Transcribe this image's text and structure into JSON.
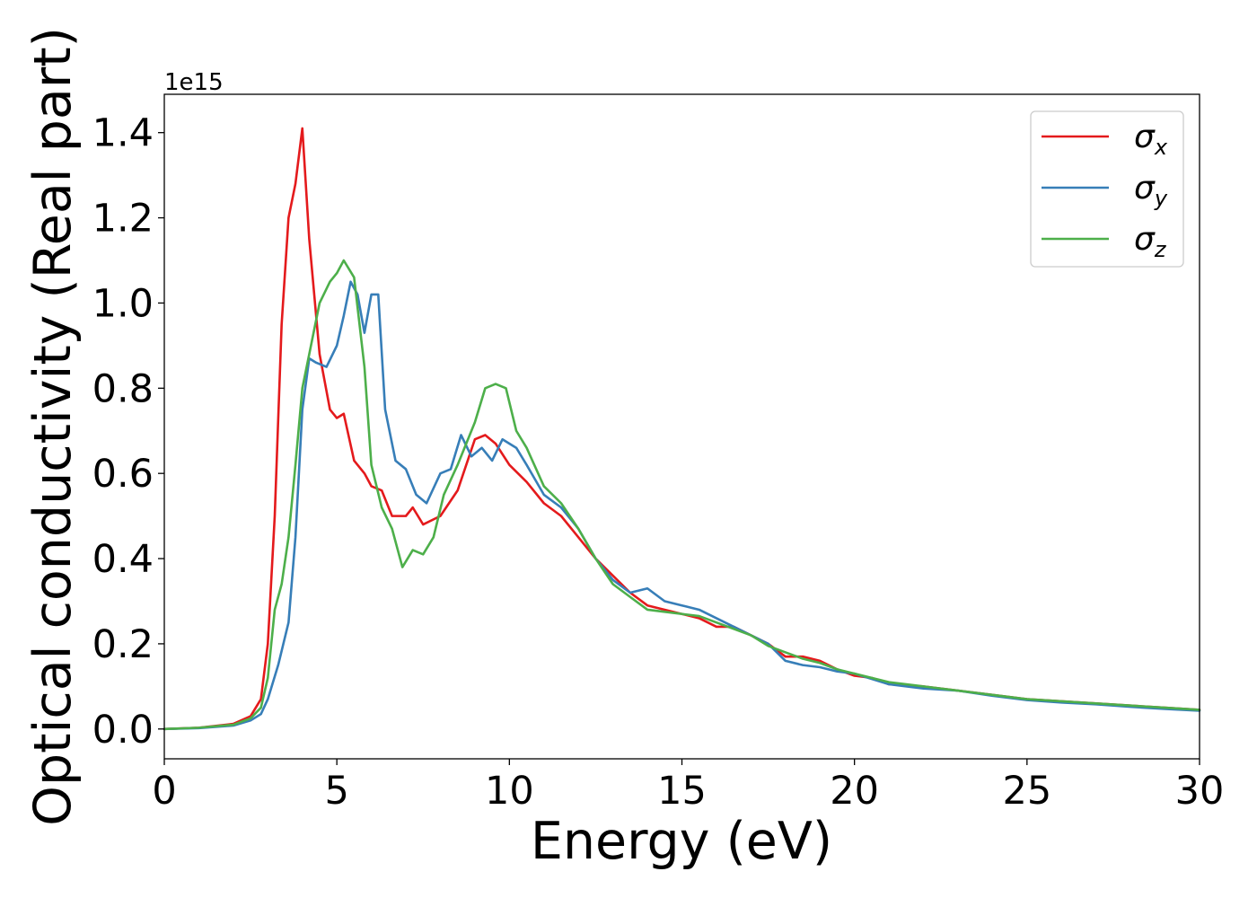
{
  "chart_data": {
    "type": "line",
    "xlabel": "Energy (eV)",
    "ylabel": "Optical conductivity (Real part)",
    "y_offset_label": "1e15",
    "xlim": [
      0,
      30
    ],
    "ylim": [
      -0.07,
      1.49
    ],
    "x_ticks": [
      0,
      5,
      10,
      15,
      20,
      25,
      30
    ],
    "x_tick_labels": [
      "0",
      "5",
      "10",
      "15",
      "20",
      "25",
      "30"
    ],
    "y_ticks": [
      0.0,
      0.2,
      0.4,
      0.6,
      0.8,
      1.0,
      1.2,
      1.4
    ],
    "y_tick_labels": [
      "0.0",
      "0.2",
      "0.4",
      "0.6",
      "0.8",
      "1.0",
      "1.2",
      "1.4"
    ],
    "grid": false,
    "legend_position": "top-right",
    "series": [
      {
        "name": "σx",
        "symbol": "σ",
        "subscript": "x",
        "color": "#e41a1c",
        "x": [
          0,
          1,
          2,
          2.5,
          2.8,
          3.0,
          3.2,
          3.4,
          3.6,
          3.8,
          4.0,
          4.2,
          4.5,
          4.8,
          5.0,
          5.2,
          5.5,
          5.8,
          6.0,
          6.3,
          6.6,
          7.0,
          7.2,
          7.5,
          8.0,
          8.5,
          9.0,
          9.3,
          9.6,
          10.0,
          10.5,
          11.0,
          11.5,
          12.0,
          12.5,
          13.0,
          13.5,
          14.0,
          14.5,
          15.0,
          15.5,
          16.0,
          16.5,
          17.0,
          17.5,
          18.0,
          18.5,
          19.0,
          19.5,
          20.0,
          20.5,
          21.0,
          22.0,
          23.0,
          24.0,
          25.0,
          26.0,
          27.0,
          28.0,
          29.0,
          30.0
        ],
        "values": [
          0.0,
          0.003,
          0.012,
          0.03,
          0.07,
          0.2,
          0.5,
          0.95,
          1.2,
          1.28,
          1.41,
          1.15,
          0.88,
          0.75,
          0.73,
          0.74,
          0.63,
          0.6,
          0.57,
          0.56,
          0.5,
          0.5,
          0.52,
          0.48,
          0.5,
          0.56,
          0.68,
          0.69,
          0.67,
          0.62,
          0.58,
          0.53,
          0.5,
          0.45,
          0.4,
          0.36,
          0.32,
          0.29,
          0.28,
          0.27,
          0.26,
          0.24,
          0.24,
          0.22,
          0.2,
          0.17,
          0.17,
          0.16,
          0.14,
          0.125,
          0.12,
          0.105,
          0.1,
          0.09,
          0.08,
          0.07,
          0.065,
          0.06,
          0.055,
          0.05,
          0.045
        ]
      },
      {
        "name": "σy",
        "symbol": "σ",
        "subscript": "y",
        "color": "#377eb8",
        "x": [
          0,
          1,
          2,
          2.5,
          2.8,
          3.0,
          3.3,
          3.6,
          3.8,
          4.0,
          4.2,
          4.4,
          4.7,
          5.0,
          5.2,
          5.4,
          5.6,
          5.8,
          6.0,
          6.2,
          6.4,
          6.7,
          7.0,
          7.3,
          7.6,
          8.0,
          8.3,
          8.6,
          8.9,
          9.2,
          9.5,
          9.8,
          10.2,
          10.5,
          11.0,
          11.5,
          12.0,
          12.5,
          13.0,
          13.5,
          14.0,
          14.5,
          15.0,
          15.5,
          16.0,
          16.5,
          17.0,
          17.5,
          18.0,
          18.5,
          19.0,
          19.5,
          20.0,
          21.0,
          22.0,
          23.0,
          24.0,
          25.0,
          26.0,
          27.0,
          28.0,
          29.0,
          30.0
        ],
        "values": [
          0.0,
          0.002,
          0.008,
          0.02,
          0.035,
          0.07,
          0.15,
          0.25,
          0.45,
          0.75,
          0.87,
          0.86,
          0.85,
          0.9,
          0.97,
          1.05,
          1.02,
          0.93,
          1.02,
          1.02,
          0.75,
          0.63,
          0.61,
          0.55,
          0.53,
          0.6,
          0.61,
          0.69,
          0.64,
          0.66,
          0.63,
          0.68,
          0.66,
          0.62,
          0.55,
          0.52,
          0.47,
          0.4,
          0.35,
          0.32,
          0.33,
          0.3,
          0.29,
          0.28,
          0.26,
          0.24,
          0.22,
          0.2,
          0.16,
          0.15,
          0.145,
          0.135,
          0.13,
          0.105,
          0.095,
          0.09,
          0.078,
          0.068,
          0.062,
          0.058,
          0.052,
          0.047,
          0.043
        ]
      },
      {
        "name": "σz",
        "symbol": "σ",
        "subscript": "z",
        "color": "#4daf4a",
        "x": [
          0,
          1,
          2,
          2.5,
          2.8,
          3.0,
          3.2,
          3.4,
          3.6,
          3.8,
          4.0,
          4.2,
          4.5,
          4.8,
          5.0,
          5.2,
          5.5,
          5.8,
          6.0,
          6.3,
          6.6,
          6.9,
          7.2,
          7.5,
          7.8,
          8.1,
          8.5,
          9.0,
          9.3,
          9.6,
          9.9,
          10.2,
          10.5,
          11.0,
          11.5,
          12.0,
          12.5,
          13.0,
          13.5,
          14.0,
          14.5,
          15.0,
          15.5,
          16.0,
          16.5,
          17.0,
          17.5,
          18.0,
          18.5,
          19.0,
          19.5,
          20.0,
          21.0,
          22.0,
          23.0,
          24.0,
          25.0,
          26.0,
          27.0,
          28.0,
          29.0,
          30.0
        ],
        "values": [
          0.0,
          0.003,
          0.01,
          0.025,
          0.05,
          0.12,
          0.28,
          0.34,
          0.45,
          0.62,
          0.8,
          0.88,
          1.0,
          1.05,
          1.07,
          1.1,
          1.06,
          0.85,
          0.62,
          0.52,
          0.47,
          0.38,
          0.42,
          0.41,
          0.45,
          0.55,
          0.62,
          0.72,
          0.8,
          0.81,
          0.8,
          0.7,
          0.66,
          0.57,
          0.53,
          0.47,
          0.4,
          0.34,
          0.31,
          0.28,
          0.275,
          0.27,
          0.265,
          0.25,
          0.235,
          0.22,
          0.195,
          0.18,
          0.165,
          0.155,
          0.14,
          0.13,
          0.11,
          0.1,
          0.09,
          0.08,
          0.07,
          0.065,
          0.06,
          0.055,
          0.05,
          0.045
        ]
      }
    ]
  }
}
